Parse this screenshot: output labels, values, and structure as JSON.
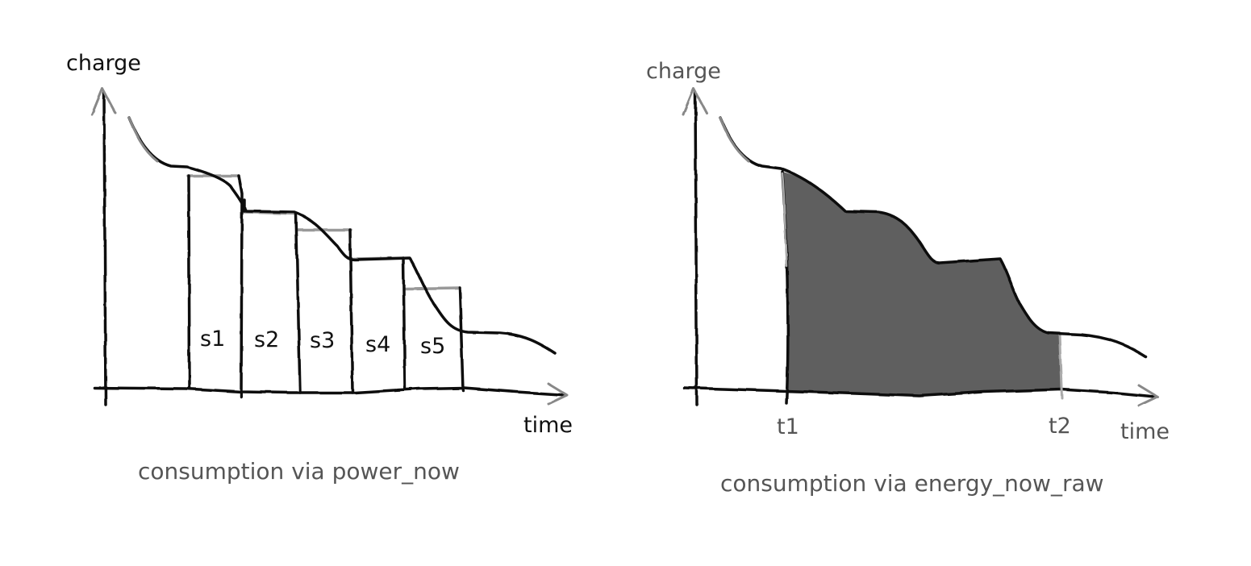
{
  "left_panel": {
    "y_axis_label": "charge",
    "x_axis_label": "time",
    "slices": [
      "s1",
      "s2",
      "s3",
      "s4",
      "s5"
    ],
    "caption": "consumption via power_now"
  },
  "right_panel": {
    "y_axis_label": "charge",
    "x_axis_label": "time",
    "ticks": [
      "t1",
      "t2"
    ],
    "caption": "consumption via energy_now_raw",
    "fill_color": "#5f5f5f"
  }
}
